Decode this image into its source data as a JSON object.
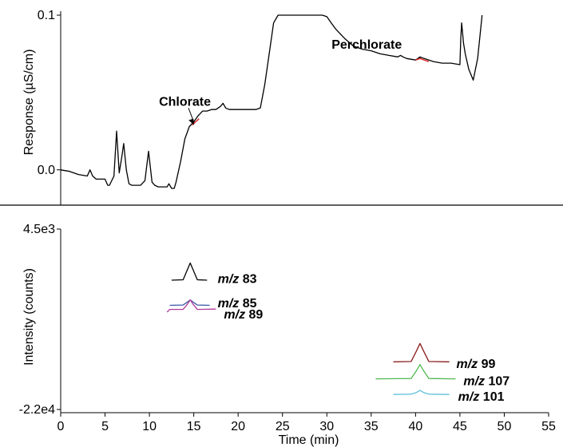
{
  "chart_data": [
    {
      "type": "line",
      "panel": "top",
      "ylabel": "Response (µS/cm)",
      "ytick_labels": [
        "0.1",
        "0.0"
      ],
      "ylim": [
        -0.012,
        0.1
      ],
      "xlim": [
        0,
        55
      ],
      "series": [
        {
          "color": "#000000",
          "x": [
            0,
            1,
            2,
            3,
            3.3,
            3.6,
            4,
            5,
            5.3,
            5.5,
            6,
            6.3,
            6.6,
            6.9,
            7.1,
            7.4,
            7.7,
            8,
            9,
            9.5,
            9.9,
            10.3,
            10.6,
            11,
            12,
            12.2,
            12.5,
            12.8,
            13,
            13.5,
            14,
            14.5,
            15,
            15.5,
            16,
            16.5,
            17,
            17.5,
            18,
            18.3,
            18.6,
            19,
            20,
            21,
            22,
            22.5,
            23,
            23.5,
            24,
            24.5,
            25,
            26,
            27,
            28,
            29,
            29.5,
            30,
            30.5,
            31,
            32,
            33,
            34,
            35,
            36,
            37,
            38,
            38.3,
            38.6,
            39,
            40,
            40.5,
            41,
            42,
            43,
            44,
            45,
            45.1,
            45.2,
            45.4,
            45.6,
            46,
            46.5,
            47,
            47.5
          ],
          "y": [
            0.0,
            -0.001,
            -0.003,
            -0.004,
            0.0,
            -0.004,
            -0.006,
            -0.006,
            -0.01,
            -0.01,
            -0.004,
            0.025,
            -0.002,
            0.009,
            0.017,
            0.0,
            -0.009,
            -0.01,
            -0.01,
            -0.007,
            0.012,
            -0.008,
            -0.01,
            -0.011,
            -0.011,
            -0.009,
            -0.012,
            -0.012,
            -0.008,
            0.005,
            0.02,
            0.028,
            0.031,
            0.035,
            0.038,
            0.038,
            0.039,
            0.039,
            0.041,
            0.043,
            0.04,
            0.039,
            0.039,
            0.039,
            0.039,
            0.04,
            0.055,
            0.075,
            0.095,
            0.1,
            0.1,
            0.1,
            0.1,
            0.1,
            0.1,
            0.1,
            0.099,
            0.095,
            0.091,
            0.085,
            0.08,
            0.078,
            0.077,
            0.075,
            0.074,
            0.073,
            0.074,
            0.073,
            0.072,
            0.071,
            0.073,
            0.072,
            0.07,
            0.069,
            0.069,
            0.068,
            0.085,
            0.095,
            0.082,
            0.075,
            0.065,
            0.058,
            0.072,
            0.1
          ]
        },
        {
          "color": "#e03030",
          "x": [
            14.8,
            15.2,
            15.6
          ],
          "y": [
            0.029,
            0.031,
            0.033
          ]
        },
        {
          "color": "#e03030",
          "x": [
            40,
            40.5,
            41.5
          ],
          "y": [
            0.071,
            0.072,
            0.07
          ]
        }
      ],
      "annotations": [
        {
          "text": "Chlorate",
          "x": 14,
          "y": 0.044
        },
        {
          "text": "Perchlorate",
          "x": 34.5,
          "y": 0.081
        }
      ]
    },
    {
      "type": "line",
      "panel": "bottom",
      "xlabel": "Time (min)",
      "ylabel": "Intensity (counts)",
      "ytick_labels": [
        "4.5e3",
        "-2.2e4"
      ],
      "xlim": [
        0,
        55
      ],
      "xticks": [
        0,
        5,
        10,
        15,
        20,
        25,
        30,
        35,
        40,
        45,
        50,
        55
      ],
      "series": [
        {
          "name_label": "83",
          "color": "#000000",
          "x": [
            12.5,
            13.8,
            14.3,
            14.6,
            14.9,
            15.4,
            16.5
          ],
          "y": [
            -3000,
            -2950,
            -1400,
            -480,
            -1400,
            -2950,
            -3000
          ]
        },
        {
          "name_label": "85",
          "color": "#3a56a8",
          "x": [
            12.3,
            13.8,
            14.3,
            14.6,
            14.9,
            15.4,
            16.8
          ],
          "y": [
            -6700,
            -6650,
            -6200,
            -5900,
            -6200,
            -6650,
            -6700
          ]
        },
        {
          "name_label": "89",
          "color": "#b03a9a",
          "x": [
            12,
            12.3,
            13.8,
            14.3,
            14.6,
            14.9,
            15.4,
            17.5
          ],
          "y": [
            -7700,
            -7300,
            -7300,
            -6500,
            -5900,
            -6500,
            -7300,
            -7250
          ]
        },
        {
          "name_label": "99",
          "color": "#8b1a1a",
          "x": [
            37.5,
            39.5,
            40.1,
            40.5,
            40.9,
            41.5,
            43.8
          ],
          "y": [
            -15000,
            -14950,
            -13400,
            -12300,
            -13400,
            -14950,
            -15000
          ]
        },
        {
          "name_label": "107",
          "color": "#4fb84f",
          "x": [
            35.5,
            39.5,
            40.1,
            40.5,
            40.9,
            41.5,
            44.5
          ],
          "y": [
            -17500,
            -17450,
            -16300,
            -15400,
            -16300,
            -17450,
            -17500
          ]
        },
        {
          "name_label": "101",
          "color": "#5fc0d8",
          "x": [
            37.5,
            39.5,
            40.1,
            40.5,
            40.9,
            41.5,
            43.8
          ],
          "y": [
            -19800,
            -19750,
            -19500,
            -19200,
            -19500,
            -19750,
            -19800
          ]
        }
      ],
      "legend_prefix": "m/z"
    }
  ]
}
